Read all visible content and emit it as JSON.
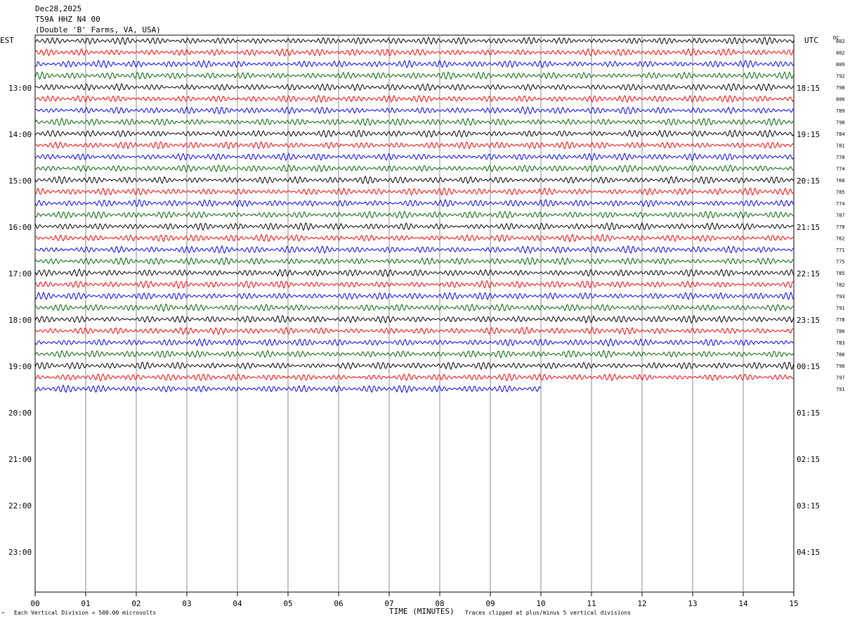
{
  "header": {
    "date": "Dec28,2025",
    "station": "T59A HHZ N4 00",
    "location": "(Double 'B' Farms, VA, USA)"
  },
  "left_axis_title": "EST",
  "right_axis_title": "UTC",
  "dc_header": "DC",
  "footer": {
    "scale_note": "Each Vertical Division =  500.00 microvolts",
    "xlabel": "TIME (MINUTES)",
    "clip_note": "Traces clipped at plus/minus 5 vertical divisions"
  },
  "chart_data": {
    "type": "line",
    "title": "Dec28,2025 T59A HHZ N4 00 (Double 'B' Farms, VA, USA)",
    "xlabel": "TIME (MINUTES)",
    "xlim": [
      0,
      15
    ],
    "x_ticks": [
      "00",
      "01",
      "02",
      "03",
      "04",
      "05",
      "06",
      "07",
      "08",
      "09",
      "10",
      "11",
      "12",
      "13",
      "14",
      "15"
    ],
    "est_hour_labels": [
      "13:00",
      "14:00",
      "15:00",
      "16:00",
      "17:00",
      "18:00",
      "19:00",
      "20:00",
      "21:00",
      "22:00",
      "23:00"
    ],
    "utc_hour_labels": [
      "18:15",
      "19:15",
      "20:15",
      "21:15",
      "22:15",
      "23:15",
      "00:15",
      "01:15",
      "02:15",
      "03:15",
      "04:15"
    ],
    "trace_minutes": 15,
    "traces_per_hour": 4,
    "color_cycle": [
      "#000000",
      "#ff0000",
      "#0000ff",
      "#006400"
    ],
    "dc_offsets": [
      802,
      802,
      809,
      792,
      798,
      806,
      789,
      798,
      784,
      781,
      770,
      774,
      768,
      785,
      774,
      787,
      778,
      762,
      771,
      775,
      785,
      782,
      793,
      791,
      778,
      786,
      783,
      788,
      790,
      797,
      791
    ],
    "last_trace_end_minute": 10,
    "grid": true,
    "vertical_division_microvolts": 500.0
  }
}
